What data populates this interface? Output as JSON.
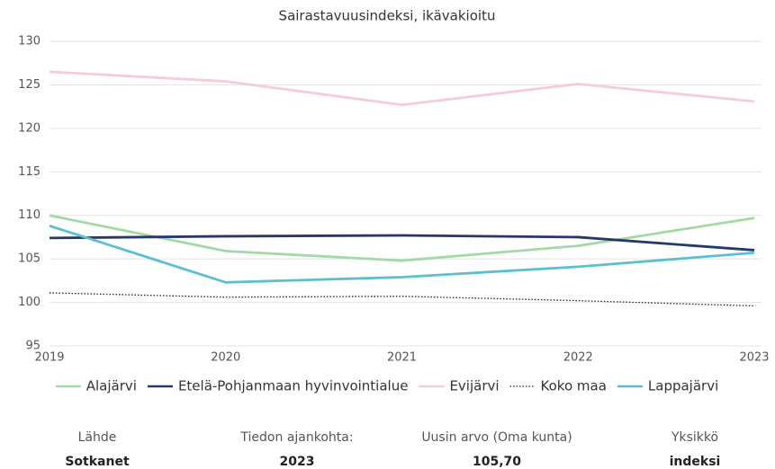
{
  "chart_data": {
    "type": "line",
    "title": "Sairastavuusindeksi, ikävakioitu",
    "x": [
      2019,
      2020,
      2021,
      2022,
      2023
    ],
    "xlim": [
      2019,
      2023
    ],
    "xticks": [
      2019,
      2020,
      2021,
      2022,
      2023
    ],
    "ylim": [
      95,
      130
    ],
    "yticks": [
      95,
      100,
      105,
      110,
      115,
      120,
      125,
      130
    ],
    "grid": true,
    "series": [
      {
        "name": "Alajärvi",
        "color": "#a3d9a5",
        "values": [
          110.0,
          105.9,
          104.8,
          106.5,
          109.7
        ]
      },
      {
        "name": "Etelä-Pohjanmaan hyvinvointialue",
        "color": "#26386b",
        "values": [
          107.4,
          107.6,
          107.7,
          107.5,
          106.0
        ]
      },
      {
        "name": "Evijärvi",
        "color": "#f7ccd3",
        "values": [
          126.5,
          125.4,
          122.7,
          125.1,
          123.1
        ]
      },
      {
        "name": "Koko maa",
        "color": "#222222",
        "style": "dotted",
        "values": [
          101.1,
          100.6,
          100.7,
          100.2,
          99.6
        ]
      },
      {
        "name": "Lappajärvi",
        "color": "#5cbfcf",
        "values": [
          108.8,
          102.3,
          102.9,
          104.1,
          105.7
        ]
      }
    ]
  },
  "info": [
    {
      "label": "Lähde",
      "value": "Sotkanet"
    },
    {
      "label": "Tiedon ajankohta:",
      "value": "2023"
    },
    {
      "label": "Uusin arvo (Oma kunta)",
      "value": "105,70"
    },
    {
      "label": "Yksikkö",
      "value": "indeksi"
    }
  ]
}
